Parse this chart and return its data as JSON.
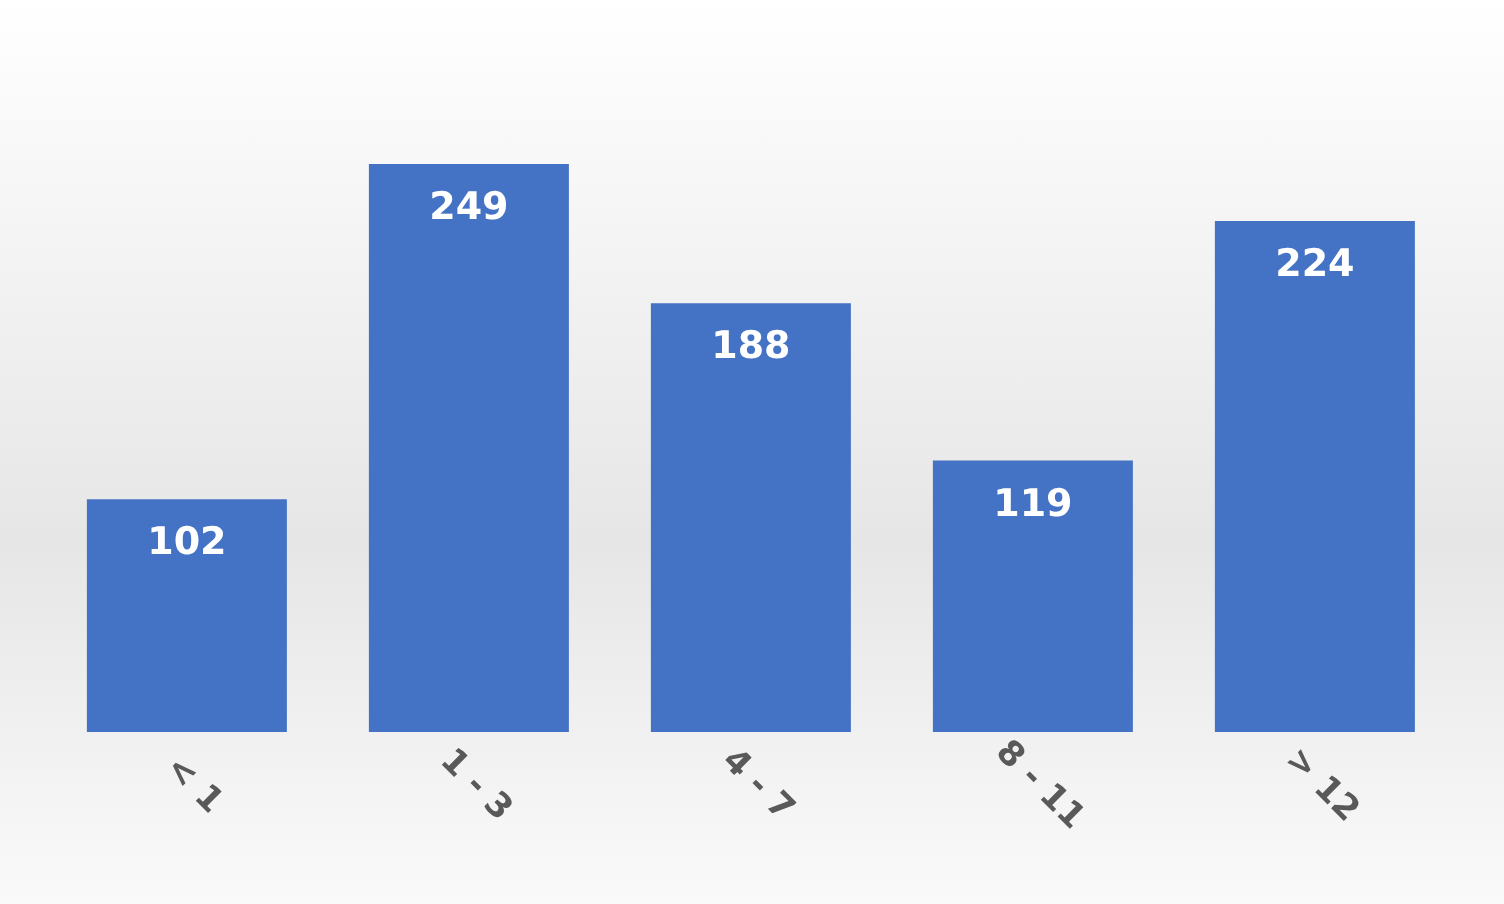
{
  "chart_data": {
    "type": "bar",
    "categories": [
      "< 1",
      "1 - 3",
      "4 - 7",
      "8 - 11",
      "> 12"
    ],
    "values": [
      102,
      249,
      188,
      119,
      224
    ],
    "color": "#4472c4",
    "data_labels": true,
    "grid": false,
    "legend": false
  }
}
